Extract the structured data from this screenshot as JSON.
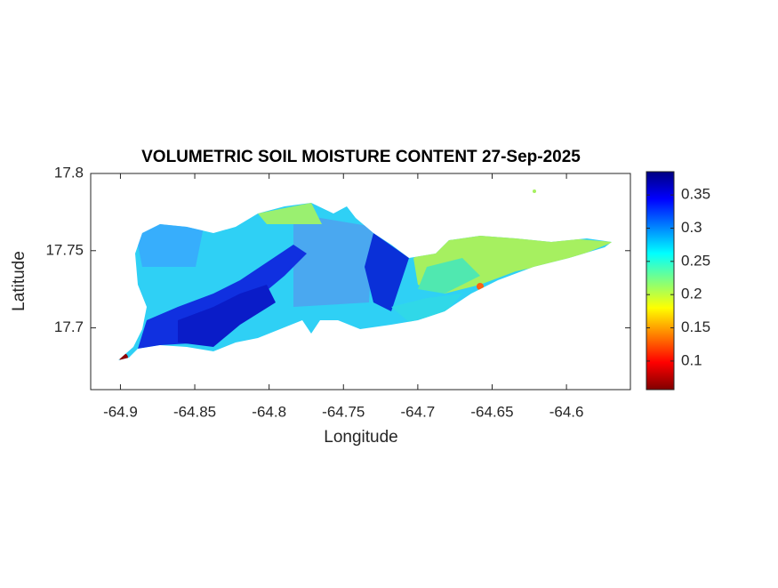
{
  "chart_data": {
    "type": "heatmap",
    "title": "VOLUMETRIC SOIL MOISTURE CONTENT 27-Sep-2025",
    "xlabel": "Longitude",
    "ylabel": "Latitude",
    "xlim": [
      -64.92,
      -64.557
    ],
    "xticks": [
      -64.9,
      -64.85,
      -64.8,
      -64.75,
      -64.7,
      -64.65,
      -64.6
    ],
    "ylim": [
      17.66,
      17.8
    ],
    "yticks": [
      17.7,
      17.75,
      17.8
    ],
    "colormap": "jet",
    "clim": [
      0.057,
      0.385
    ],
    "cticks": [
      0.1,
      0.15,
      0.2,
      0.25,
      0.3,
      0.35
    ]
  }
}
